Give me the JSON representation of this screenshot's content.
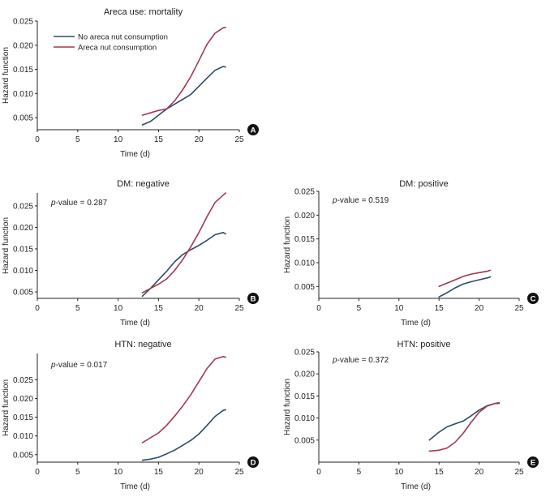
{
  "figure": {
    "colors": {
      "no_areca": "#2b4a6b",
      "areca": "#a0394f",
      "axis": "#222222",
      "text": "#222222"
    }
  },
  "chart_data": [
    {
      "panel": "A",
      "type": "line",
      "title": "Areca use: mortality",
      "xlabel": "Time (d)",
      "ylabel": "Hazard function",
      "xlim": [
        0,
        25
      ],
      "ylim": [
        0.0025,
        0.025
      ],
      "xticks": [
        0,
        5,
        10,
        15,
        20,
        25
      ],
      "yticks": [
        0.005,
        0.01,
        0.015,
        0.02,
        0.025
      ],
      "ytick_labels": [
        "0.005",
        "0.010",
        "0.015",
        "0.020",
        "0.025"
      ],
      "legend": [
        "No areca nut consumption",
        "Areca nut consumption"
      ],
      "pvalue": null,
      "series": [
        {
          "name": "No areca nut consumption",
          "x": [
            13,
            14,
            15,
            16,
            17,
            18,
            19,
            20,
            21,
            22,
            23,
            23.3
          ],
          "y": [
            0.0035,
            0.0042,
            0.0055,
            0.0068,
            0.0078,
            0.0088,
            0.0098,
            0.0115,
            0.0132,
            0.0148,
            0.0156,
            0.0155
          ]
        },
        {
          "name": "Areca nut consumption",
          "x": [
            13,
            14,
            15,
            16,
            17,
            18,
            19,
            20,
            21,
            22,
            23,
            23.3
          ],
          "y": [
            0.0055,
            0.006,
            0.0065,
            0.0068,
            0.0085,
            0.0108,
            0.0135,
            0.0168,
            0.0202,
            0.0225,
            0.0236,
            0.0237
          ]
        }
      ]
    },
    {
      "panel": "B",
      "type": "line",
      "title": "DM: negative",
      "xlabel": "Time (d)",
      "ylabel": "Hazard function",
      "xlim": [
        0,
        25
      ],
      "ylim": [
        0.0035,
        0.028
      ],
      "xticks": [
        0,
        5,
        10,
        15,
        20,
        25
      ],
      "yticks": [
        0.005,
        0.01,
        0.015,
        0.02,
        0.025
      ],
      "ytick_labels": [
        "0.005",
        "0.010",
        "0.015",
        "0.020",
        "0.025"
      ],
      "legend": [],
      "pvalue": {
        "prefix": "p",
        "text": "-value = 0.287"
      },
      "series": [
        {
          "name": "No areca nut consumption",
          "x": [
            13,
            14,
            15,
            16,
            17,
            18,
            19,
            20,
            21,
            22,
            23,
            23.3
          ],
          "y": [
            0.004,
            0.0058,
            0.0078,
            0.0098,
            0.012,
            0.0137,
            0.0148,
            0.0158,
            0.017,
            0.0183,
            0.0188,
            0.0185
          ]
        },
        {
          "name": "Areca nut consumption",
          "x": [
            13,
            14,
            15,
            16,
            17,
            18,
            19,
            20,
            21,
            22,
            23,
            23.3
          ],
          "y": [
            0.0048,
            0.0058,
            0.0068,
            0.008,
            0.01,
            0.0125,
            0.0155,
            0.0188,
            0.0225,
            0.0258,
            0.0275,
            0.028
          ]
        }
      ]
    },
    {
      "panel": "C",
      "type": "line",
      "title": "DM: positive",
      "xlabel": "Time (d)",
      "ylabel": "Hazard function",
      "xlim": [
        0,
        25
      ],
      "ylim": [
        0.0025,
        0.025
      ],
      "xticks": [
        0,
        5,
        10,
        15,
        20,
        25
      ],
      "yticks": [
        0.005,
        0.01,
        0.015,
        0.02,
        0.025
      ],
      "ytick_labels": [
        "0.005",
        "0.010",
        "0.015",
        "0.020",
        "0.025"
      ],
      "legend": [],
      "pvalue": {
        "prefix": "p",
        "text": "-value = 0.519"
      },
      "series": [
        {
          "name": "No areca nut consumption",
          "x": [
            15,
            16,
            17,
            18,
            19,
            20,
            21,
            21.4
          ],
          "y": [
            0.0028,
            0.0037,
            0.0047,
            0.0055,
            0.006,
            0.0064,
            0.0068,
            0.007
          ]
        },
        {
          "name": "Areca nut consumption",
          "x": [
            15,
            16,
            17,
            18,
            19,
            20,
            21,
            21.4
          ],
          "y": [
            0.005,
            0.0057,
            0.0064,
            0.0071,
            0.0076,
            0.0079,
            0.0082,
            0.0084
          ]
        }
      ]
    },
    {
      "panel": "D",
      "type": "line",
      "title": "HTN: negative",
      "xlabel": "Time (d)",
      "ylabel": "Hazard function",
      "xlim": [
        0,
        25
      ],
      "ylim": [
        0.003,
        0.032
      ],
      "xticks": [
        0,
        5,
        10,
        15,
        20,
        25
      ],
      "yticks": [
        0.005,
        0.01,
        0.015,
        0.02,
        0.025
      ],
      "ytick_labels": [
        "0.005",
        "0.010",
        "0.015",
        "0.020",
        "0.025"
      ],
      "legend": [],
      "pvalue": {
        "prefix": "p",
        "text": "-value = 0.017"
      },
      "series": [
        {
          "name": "No areca nut consumption",
          "x": [
            13,
            14,
            15,
            16,
            17,
            18,
            19,
            20,
            21,
            22,
            23,
            23.3
          ],
          "y": [
            0.0035,
            0.0038,
            0.0043,
            0.0052,
            0.0062,
            0.0075,
            0.0088,
            0.0105,
            0.0128,
            0.0152,
            0.0168,
            0.017
          ]
        },
        {
          "name": "Areca nut consumption",
          "x": [
            13,
            14,
            15,
            16,
            17,
            18,
            19,
            20,
            21,
            22,
            23,
            23.3
          ],
          "y": [
            0.0082,
            0.0095,
            0.0108,
            0.0128,
            0.0153,
            0.018,
            0.021,
            0.0245,
            0.028,
            0.0305,
            0.0312,
            0.031
          ]
        }
      ]
    },
    {
      "panel": "E",
      "type": "line",
      "title": "HTN: positive",
      "xlabel": "Time (d)",
      "ylabel": "Hazard function",
      "xlim": [
        0,
        25
      ],
      "ylim": [
        0.0,
        0.025
      ],
      "xticks": [
        0,
        5,
        10,
        15,
        20,
        25
      ],
      "yticks": [
        0.005,
        0.01,
        0.015,
        0.02,
        0.025
      ],
      "ytick_labels": [
        "0.005",
        "0.010",
        "0.015",
        "0.020",
        "0.025"
      ],
      "legend": [],
      "pvalue": {
        "prefix": "p",
        "text": "-value = 0.372"
      },
      "series": [
        {
          "name": "No areca nut consumption",
          "x": [
            13.8,
            15,
            16,
            17,
            18,
            19,
            20,
            21,
            22,
            22.5
          ],
          "y": [
            0.005,
            0.0068,
            0.008,
            0.0087,
            0.0093,
            0.0105,
            0.0118,
            0.0128,
            0.0133,
            0.0133
          ]
        },
        {
          "name": "Areca nut consumption",
          "x": [
            13.8,
            15,
            16,
            17,
            18,
            19,
            20,
            21,
            22,
            22.5
          ],
          "y": [
            0.0025,
            0.0027,
            0.0032,
            0.0045,
            0.0065,
            0.009,
            0.0113,
            0.0127,
            0.0133,
            0.0135
          ]
        }
      ]
    }
  ]
}
